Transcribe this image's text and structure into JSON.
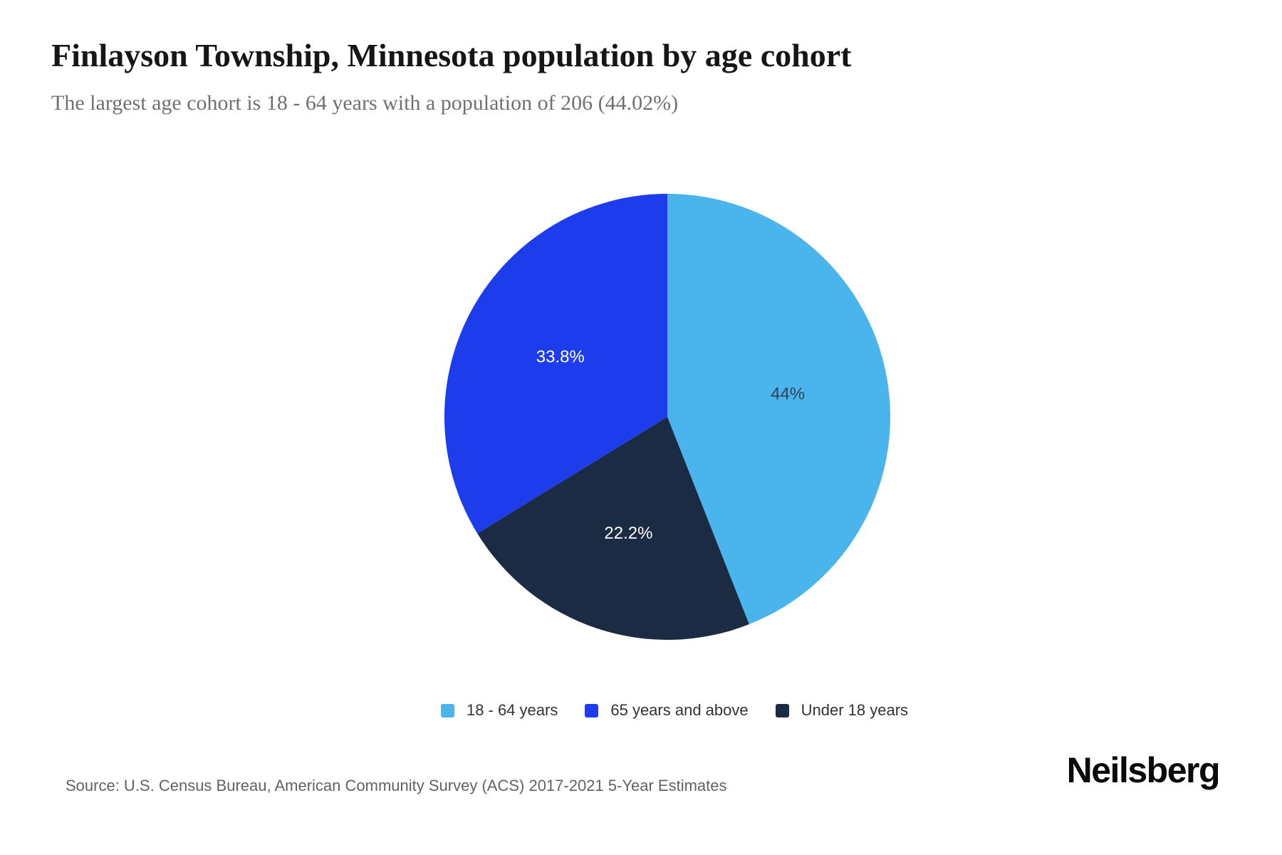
{
  "header": {
    "title": "Finlayson Township, Minnesota population by age cohort",
    "subtitle": "The largest age cohort is 18 - 64 years with a population of 206 (44.02%)"
  },
  "chart_data": {
    "type": "pie",
    "title": "Finlayson Township, Minnesota population by age cohort",
    "start_angle_deg": 0,
    "direction": "clockwise",
    "slices_clockwise_from_top": [
      {
        "label": "18 - 64 years",
        "value": 44.02,
        "display": "44%",
        "color": "#4ab5ec",
        "label_color": "#334250"
      },
      {
        "label": "Under 18 years",
        "value": 22.22,
        "display": "22.2%",
        "color": "#1b2b43",
        "label_color": "#ffffff"
      },
      {
        "label": "65 years and above",
        "value": 33.76,
        "display": "33.8%",
        "color": "#1d3ceb",
        "label_color": "#ffffff"
      }
    ],
    "legend_position": "bottom"
  },
  "legend": {
    "items": [
      {
        "label": "18 - 64 years",
        "color": "#4ab5ec"
      },
      {
        "label": "65 years and above",
        "color": "#1d3ceb"
      },
      {
        "label": "Under 18 years",
        "color": "#1b2b43"
      }
    ]
  },
  "footer": {
    "source": "Source: U.S. Census Bureau, American Community Survey (ACS) 2017-2021 5-Year Estimates",
    "brand": "Neilsberg"
  }
}
